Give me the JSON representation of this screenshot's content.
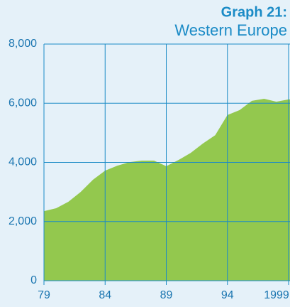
{
  "chart_data": {
    "type": "area",
    "title": "Graph 21:",
    "subtitle": "Western Europe",
    "x": [
      1979,
      1980,
      1981,
      1982,
      1983,
      1984,
      1985,
      1986,
      1987,
      1988,
      1989,
      1990,
      1991,
      1992,
      1993,
      1994,
      1995,
      1996,
      1997,
      1998,
      1999
    ],
    "values": [
      2350,
      2450,
      2670,
      3000,
      3410,
      3720,
      3890,
      4010,
      4060,
      4060,
      3870,
      4080,
      4320,
      4640,
      4920,
      5600,
      5770,
      6080,
      6150,
      6050,
      6130
    ],
    "color": "#93c84e",
    "grid_color": "#1b8bc6",
    "xlim": [
      1979,
      1999
    ],
    "xticks": [
      {
        "value": 1979,
        "label": "79"
      },
      {
        "value": 1984,
        "label": "84"
      },
      {
        "value": 1989,
        "label": "89"
      },
      {
        "value": 1994,
        "label": "94"
      },
      1999
    ],
    "ylim": [
      0,
      8000
    ],
    "yticks": [
      0,
      {
        "value": 2000,
        "label": "2,000"
      },
      {
        "value": 4000,
        "label": "4,000"
      },
      {
        "value": 6000,
        "label": "6,000"
      },
      {
        "value": 8000,
        "label": "8,000"
      }
    ],
    "grid": true
  }
}
